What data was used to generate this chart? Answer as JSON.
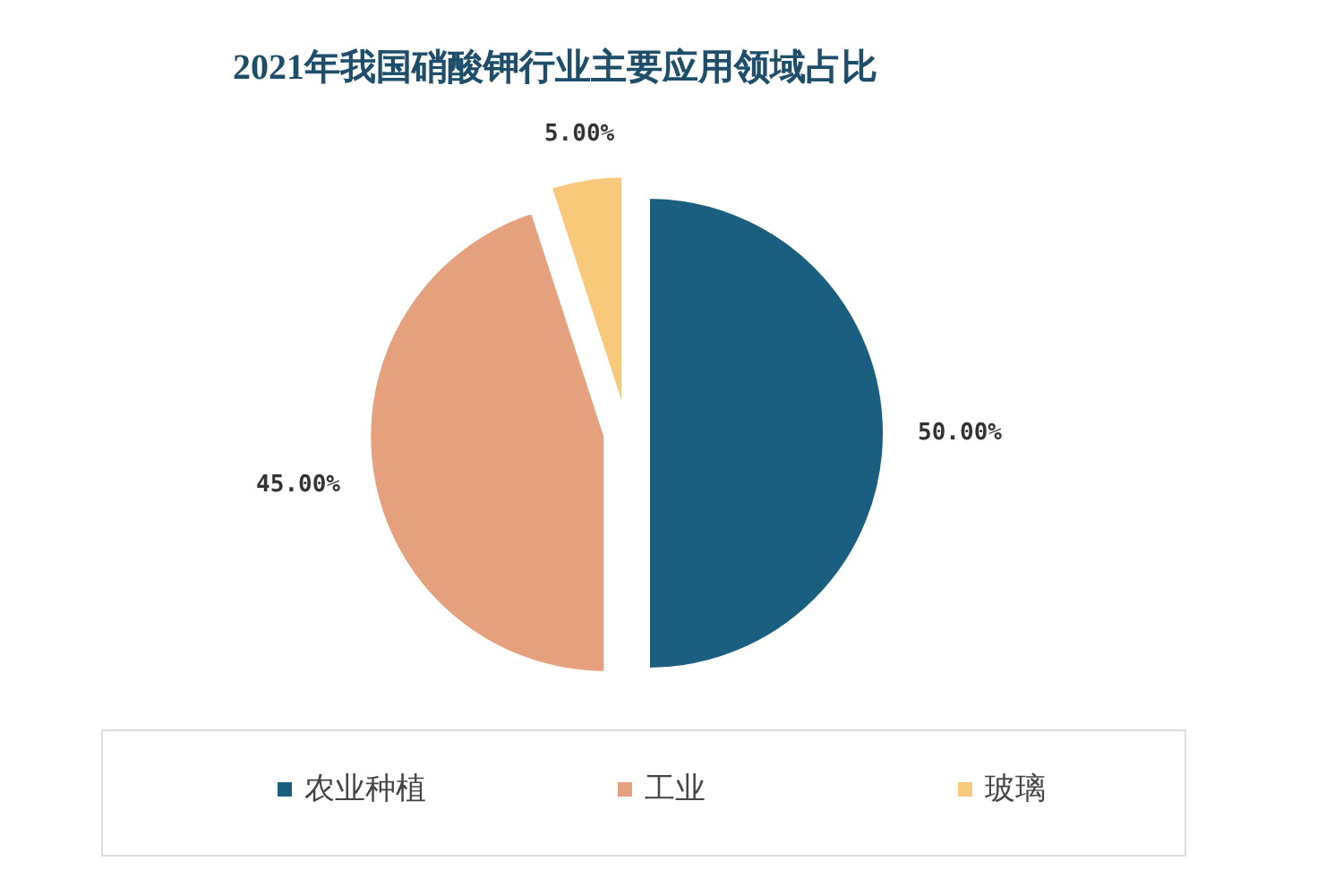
{
  "chart_data": {
    "type": "pie",
    "title": "2021年我国硝酸钾行业主要应用领域占比",
    "categories": [
      "农业种植",
      "工业",
      "玻璃"
    ],
    "values": [
      50,
      45,
      5
    ],
    "value_labels": [
      "50.00%",
      "45.00%",
      "5.00%"
    ],
    "colors": [
      "#1b5f80",
      "#e5a07e",
      "#f8c97a"
    ],
    "legend": "bottom"
  }
}
